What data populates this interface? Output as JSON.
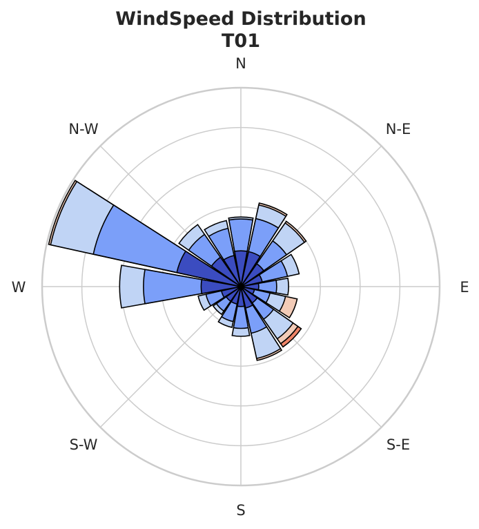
{
  "chart_data": {
    "type": "windrose",
    "title": [
      "WindSpeed Distribution",
      "T01"
    ],
    "direction_labels": [
      "N",
      "N-E",
      "E",
      "S-E",
      "S",
      "S-W",
      "W",
      "N-W"
    ],
    "sector_count": 16,
    "sector_centers_deg": [
      0,
      22.5,
      45,
      67.5,
      90,
      112.5,
      135,
      157.5,
      180,
      202.5,
      225,
      247.5,
      270,
      292.5,
      315,
      337.5
    ],
    "radial_max": 5.0,
    "radial_gridlines": [
      1,
      2,
      3,
      4,
      5
    ],
    "speed_bin_colors": [
      "#3b4cc0",
      "#7b9ff9",
      "#c0d4f5",
      "#f2cbb7",
      "#ee8468"
    ],
    "sectors": [
      {
        "dir_deg": 0,
        "stacks": [
          0.9,
          1.7,
          1.75,
          1.75,
          1.75
        ]
      },
      {
        "dir_deg": 22.5,
        "stacks": [
          0.9,
          1.75,
          2.1,
          2.15,
          2.15
        ]
      },
      {
        "dir_deg": 45,
        "stacks": [
          0.7,
          1.4,
          1.95,
          2.0,
          2.0
        ]
      },
      {
        "dir_deg": 67.5,
        "stacks": [
          0.55,
          1.2,
          1.5,
          1.5,
          1.5
        ]
      },
      {
        "dir_deg": 90,
        "stacks": [
          0.45,
          0.9,
          1.2,
          1.2,
          1.2
        ]
      },
      {
        "dir_deg": 112.5,
        "stacks": [
          0.35,
          0.75,
          1.15,
          1.45,
          1.45
        ]
      },
      {
        "dir_deg": 135,
        "stacks": [
          0.5,
          1.0,
          1.6,
          1.75,
          1.85
        ]
      },
      {
        "dir_deg": 157.5,
        "stacks": [
          0.55,
          1.2,
          1.85,
          1.9,
          1.9
        ]
      },
      {
        "dir_deg": 180,
        "stacks": [
          0.5,
          1.05,
          1.25,
          1.25,
          1.25
        ]
      },
      {
        "dir_deg": 202.5,
        "stacks": [
          0.45,
          0.9,
          1.05,
          1.05,
          1.05
        ]
      },
      {
        "dir_deg": 225,
        "stacks": [
          0.45,
          0.75,
          0.85,
          0.85,
          0.85
        ]
      },
      {
        "dir_deg": 247.5,
        "stacks": [
          0.5,
          0.9,
          1.1,
          1.1,
          1.1
        ]
      },
      {
        "dir_deg": 270,
        "stacks": [
          1.0,
          2.45,
          3.05,
          3.05,
          3.05
        ]
      },
      {
        "dir_deg": 292.5,
        "stacks": [
          1.65,
          3.8,
          4.9,
          4.95,
          4.95
        ]
      },
      {
        "dir_deg": 315,
        "stacks": [
          0.9,
          1.6,
          1.9,
          1.9,
          1.9
        ]
      },
      {
        "dir_deg": 337.5,
        "stacks": [
          0.8,
          1.5,
          1.7,
          1.7,
          1.7
        ]
      }
    ]
  }
}
